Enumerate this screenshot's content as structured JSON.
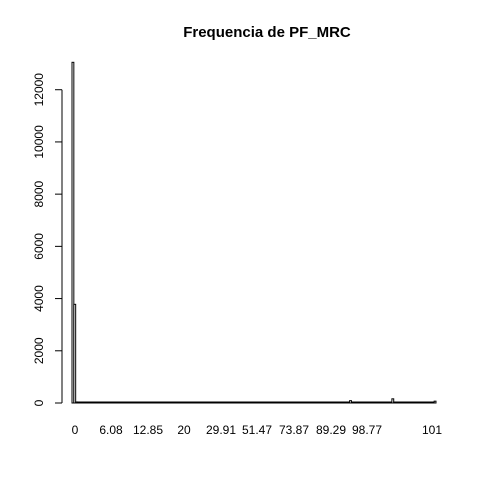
{
  "chart_data": {
    "type": "bar",
    "title": "Frequencia de PF_MRC",
    "xlabel": "",
    "ylabel": "",
    "x_tick_labels": [
      "0",
      "6.08",
      "12.85",
      "20",
      "29.91",
      "51.47",
      "73.87",
      "89.29",
      "98.77",
      "101"
    ],
    "y_ticks": [
      0,
      2000,
      4000,
      6000,
      8000,
      10000,
      12000
    ],
    "ylim": [
      0,
      13100
    ],
    "values": [
      13050,
      3780,
      40,
      10,
      5,
      5,
      5,
      5,
      5,
      5,
      5,
      5,
      5,
      5,
      5,
      5,
      5,
      5,
      5,
      5,
      5,
      5,
      5,
      5,
      5,
      5,
      5,
      5,
      5,
      5,
      5,
      5,
      5,
      5,
      5,
      5,
      5,
      5,
      5,
      5,
      5,
      5,
      5,
      5,
      5,
      5,
      5,
      5,
      5,
      5,
      5,
      5,
      5,
      5,
      20,
      5,
      5,
      5,
      5,
      5,
      5,
      5,
      20,
      5,
      5,
      5,
      5,
      20,
      20,
      20,
      20,
      20,
      20,
      20,
      20,
      20,
      20,
      20,
      5,
      5,
      5,
      5,
      20,
      5,
      5,
      5,
      5,
      5,
      5,
      20,
      5,
      5,
      5,
      5,
      5,
      5,
      5,
      20,
      5,
      5,
      5,
      5,
      5,
      5,
      5,
      20,
      5,
      5,
      5,
      5,
      5,
      5,
      5,
      5,
      5,
      5,
      5,
      5,
      5,
      5,
      5,
      5,
      5,
      20,
      5,
      5,
      5,
      5,
      5,
      5,
      5,
      5,
      5,
      5,
      5,
      5,
      5,
      5,
      5,
      5,
      5,
      5,
      5,
      5,
      5,
      5,
      5,
      5,
      5,
      5,
      5,
      90,
      5,
      5,
      5,
      5,
      5,
      5,
      20,
      5,
      5,
      5,
      5,
      20,
      20,
      5,
      5,
      5,
      5,
      5,
      5,
      5,
      5,
      5,
      160,
      20,
      5,
      5,
      5,
      5,
      5,
      5,
      5,
      20,
      5,
      5,
      5,
      5,
      5,
      20,
      5,
      5,
      5,
      20,
      30,
      30,
      30,
      70
    ],
    "grid": false,
    "legend": "none"
  }
}
